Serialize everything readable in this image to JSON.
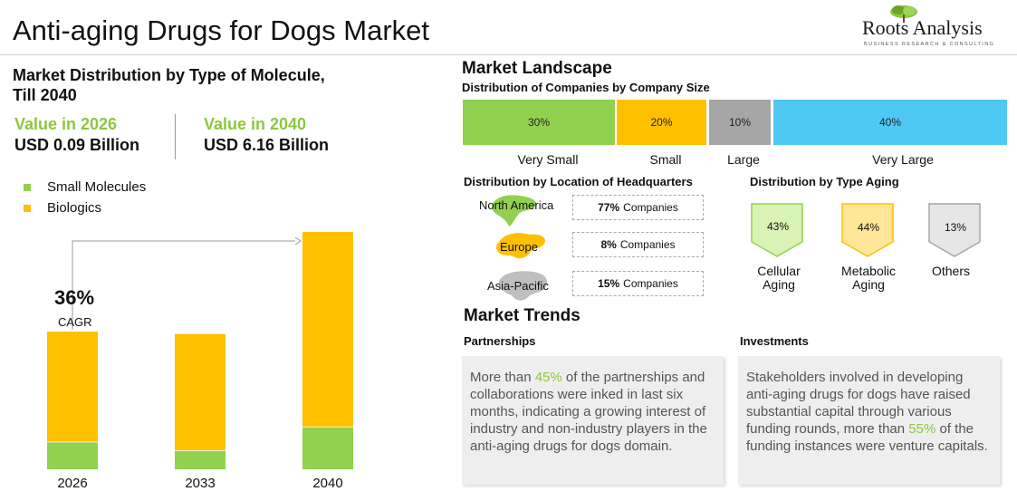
{
  "title": "Anti-aging Drugs for Dogs Market",
  "logo": {
    "name": "Roots Analysis",
    "tagline": "BUSINESS RESEARCH & CONSULTING"
  },
  "left": {
    "title_line1": "Market Distribution by Type of Molecule,",
    "title_line2": "Till 2040",
    "value_2026": {
      "label": "Value in 2026",
      "amount": "USD 0.09 Billion"
    },
    "value_2040": {
      "label": "Value in 2040",
      "amount": "USD 6.16 Billion"
    },
    "cagr": {
      "value": "36%",
      "label": "CAGR"
    }
  },
  "chart_data": {
    "type": "bar",
    "stacked": true,
    "categories": [
      "2026",
      "2033",
      "2040"
    ],
    "series": [
      {
        "name": "Small Molecules",
        "color": "#92d050",
        "values": [
          0.2,
          0.14,
          0.18
        ]
      },
      {
        "name": "Biologics",
        "color": "#ffc000",
        "values": [
          0.8,
          0.86,
          0.82
        ]
      }
    ],
    "totals_relative": [
      0.58,
      0.57,
      1.0
    ],
    "legend_position": "top-left",
    "grid": false
  },
  "landscape": {
    "title": "Market Landscape",
    "company_size": {
      "title": "Distribution of Companies by Company Size",
      "segments": [
        {
          "label": "Very Small",
          "value": "30%",
          "share": 30,
          "color": "#92d050"
        },
        {
          "label": "Small",
          "value": "20%",
          "share": 20,
          "color": "#ffc000"
        },
        {
          "label": "Large",
          "value": "10%",
          "share": 10,
          "color": "#a6a6a6"
        },
        {
          "label": "Very Large",
          "value": "40%",
          "share": 40,
          "color": "#4fc9f3"
        }
      ]
    },
    "hq": {
      "title": "Distribution by Location of Headquarters",
      "regions": [
        {
          "name": "North America",
          "value": "77%",
          "suffix": "Companies",
          "color": "#92d050"
        },
        {
          "name": "Europe",
          "value": "8%",
          "suffix": "Companies",
          "color": "#ffc000"
        },
        {
          "name": "Asia-Pacific",
          "value": "15%",
          "suffix": "Companies",
          "color": "#bfbfbf"
        }
      ]
    },
    "aging": {
      "title": "Distribution by Type Aging",
      "types": [
        {
          "line1": "Cellular",
          "line2": "Aging",
          "value": "43%",
          "fill": "#d9f2b5",
          "stroke": "#92d050"
        },
        {
          "line1": "Metabolic",
          "line2": "Aging",
          "value": "44%",
          "fill": "#ffe699",
          "stroke": "#ffc000"
        },
        {
          "line1": "Others",
          "line2": "",
          "value": "13%",
          "fill": "#e6e6e6",
          "stroke": "#a6a6a6"
        }
      ]
    }
  },
  "trends": {
    "title": "Market Trends",
    "partnerships": {
      "heading": "Partnerships",
      "pre": "More than ",
      "highlight": "45%",
      "post": " of the partnerships and collaborations were inked in last six months, indicating a growing interest of industry and non-industry players in the anti-aging drugs for dogs domain."
    },
    "investments": {
      "heading": "Investments",
      "pre": "Stakeholders involved in developing anti-aging drugs for dogs have raised substantial capital through various funding rounds, more than ",
      "highlight": "55%",
      "post": " of the funding instances were venture capitals."
    }
  }
}
